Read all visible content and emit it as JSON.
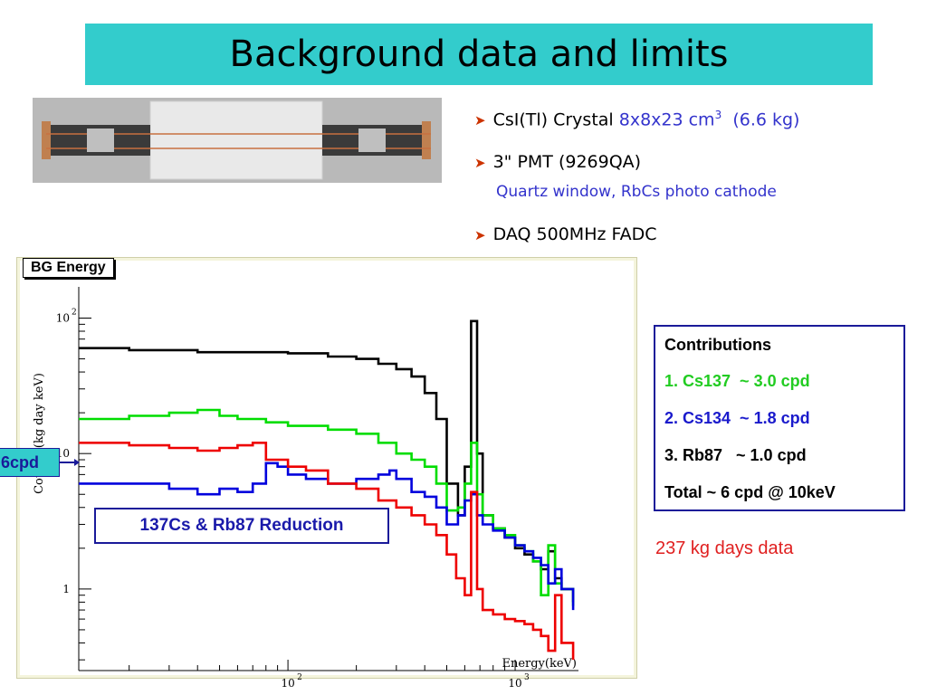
{
  "title": "Background data and limits",
  "photo": {
    "icon": "csi-crystal-detector-photo"
  },
  "bullets": {
    "b1_prefix": "CsI(Tl) Crystal ",
    "b1_dim": "8x8x23 cm",
    "b1_sup": "3",
    "b1_mass": "(6.6 kg)",
    "b2": "3\" PMT (9269QA)",
    "b2_sub": "Quartz  window, RbCs photo cathode",
    "b3": "DAQ 500MHz FADC"
  },
  "contributions": {
    "heading": "Contributions",
    "cs137": "1. Cs137  ~ 3.0 cpd",
    "cs134": "2. Cs134  ~ 1.8 cpd",
    "rb87": "3. Rb87   ~ 1.0 cpd",
    "total": "Total ~ 6 cpd @ 10keV"
  },
  "kg_days": "237 kg days data",
  "reduction_label": "137Cs & Rb87 Reduction",
  "cpd_label": "6cpd",
  "colors": {
    "accent": "#33cccc",
    "blue_text": "#3333cc",
    "red_text": "#e02020"
  },
  "chart_data": {
    "type": "line",
    "title": "BG Energy",
    "xlabel": "Energy(keV)",
    "ylabel": "Counts/(kg day keV)",
    "xscale": "log",
    "yscale": "log",
    "xlim": [
      12,
      1900
    ],
    "ylim": [
      0.25,
      170
    ],
    "xticks": [
      {
        "v": 100,
        "label": "10",
        "sup": "2"
      },
      {
        "v": 1000,
        "label": "10",
        "sup": "3"
      }
    ],
    "yticks": [
      {
        "v": 1,
        "label": "1",
        "sup": ""
      },
      {
        "v": 10,
        "label": "10",
        "sup": ""
      },
      {
        "v": 100,
        "label": "10",
        "sup": "2"
      }
    ],
    "series": [
      {
        "color": "#000000",
        "x": [
          12,
          20,
          40,
          70,
          100,
          150,
          200,
          250,
          300,
          350,
          400,
          450,
          500,
          560,
          600,
          640,
          680,
          720,
          800,
          900,
          1000,
          1100,
          1200,
          1300,
          1400,
          1500,
          1600,
          1800
        ],
        "y": [
          60,
          58,
          56,
          56,
          55,
          52,
          50,
          46,
          42,
          37,
          28,
          18,
          6,
          3.5,
          8,
          95,
          10,
          3.5,
          2.8,
          2.4,
          2.0,
          1.8,
          1.6,
          1.4,
          1.9,
          1.2,
          1.0,
          0.8
        ]
      },
      {
        "color": "#00dd00",
        "x": [
          12,
          20,
          30,
          40,
          50,
          60,
          80,
          100,
          120,
          150,
          200,
          250,
          300,
          350,
          400,
          450,
          500,
          560,
          600,
          640,
          680,
          720,
          800,
          900,
          1000,
          1100,
          1200,
          1300,
          1400,
          1500,
          1600,
          1800
        ],
        "y": [
          18,
          19,
          20,
          21,
          19,
          18,
          17,
          16,
          16,
          15,
          14,
          12,
          10,
          9,
          8,
          6,
          3.8,
          4,
          6,
          12,
          5,
          3.5,
          2.8,
          2.5,
          2.1,
          1.9,
          1.6,
          0.9,
          2.1,
          1.1,
          1.0,
          0.75
        ]
      },
      {
        "color": "#0000dd",
        "x": [
          12,
          20,
          30,
          40,
          50,
          60,
          70,
          80,
          90,
          100,
          120,
          150,
          200,
          250,
          280,
          300,
          350,
          400,
          450,
          500,
          560,
          600,
          640,
          680,
          720,
          800,
          900,
          1000,
          1100,
          1200,
          1300,
          1400,
          1500,
          1600,
          1800
        ],
        "y": [
          6,
          6,
          5.5,
          5,
          5.5,
          5.2,
          6,
          8.5,
          8,
          7,
          6.5,
          6,
          6.5,
          7,
          7.5,
          6.5,
          5.2,
          4.8,
          4.0,
          3.0,
          3.5,
          4.5,
          5,
          3.5,
          3,
          2.7,
          2.4,
          2.1,
          1.9,
          1.7,
          1.5,
          1.1,
          1.4,
          1.0,
          0.7
        ]
      },
      {
        "color": "#ee0000",
        "x": [
          12,
          20,
          30,
          40,
          50,
          60,
          70,
          80,
          100,
          120,
          150,
          200,
          250,
          300,
          350,
          400,
          450,
          500,
          550,
          600,
          640,
          680,
          720,
          800,
          900,
          1000,
          1100,
          1200,
          1300,
          1400,
          1500,
          1600,
          1800
        ],
        "y": [
          12,
          11.5,
          11,
          10.5,
          11,
          11.5,
          12,
          9,
          8,
          7.5,
          6,
          5.5,
          4.5,
          4,
          3.5,
          3,
          2.5,
          1.8,
          1.2,
          0.9,
          5.2,
          1.0,
          0.7,
          0.65,
          0.6,
          0.58,
          0.55,
          0.5,
          0.45,
          0.35,
          0.9,
          0.4,
          0.3
        ]
      }
    ]
  }
}
